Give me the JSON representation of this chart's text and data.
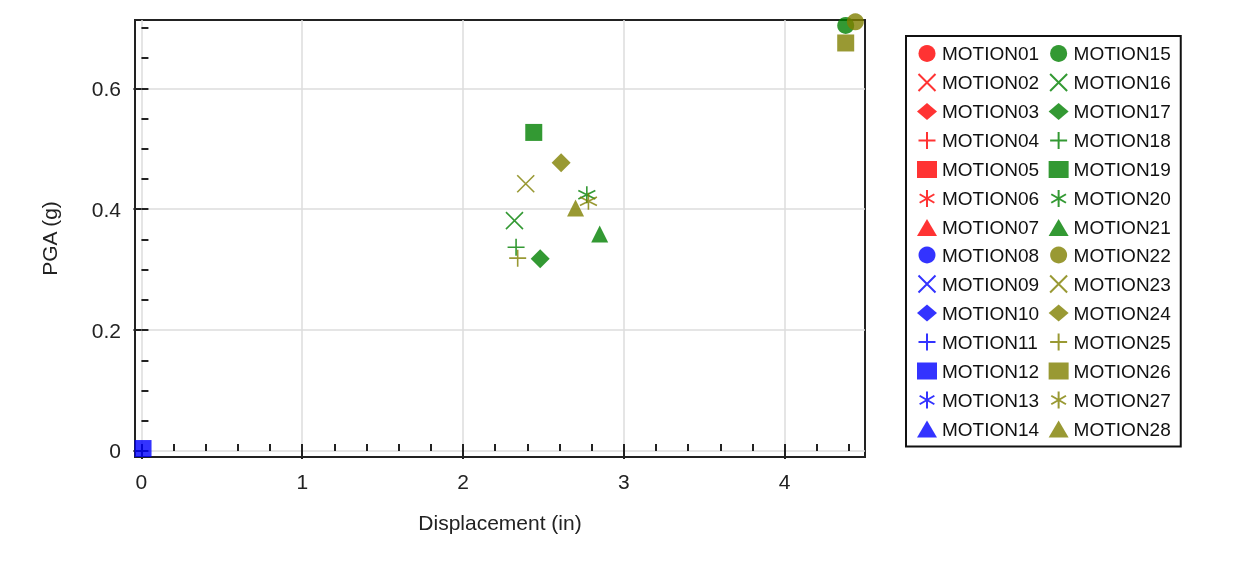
{
  "chart_data": {
    "type": "scatter",
    "xlabel": "Displacement (in)",
    "ylabel": "PGA (g)",
    "xlim": [
      -0.04,
      4.5
    ],
    "ylim": [
      -0.01,
      0.713
    ],
    "xticks": [
      0,
      {
        "value": 0.2,
        "label": null
      },
      {
        "value": 0.4,
        "label": null
      },
      {
        "value": 0.6,
        "label": null
      },
      {
        "value": 0.8,
        "label": null
      },
      1,
      {
        "value": 1.2,
        "label": null
      },
      {
        "value": 1.4,
        "label": null
      },
      {
        "value": 1.6,
        "label": null
      },
      {
        "value": 1.8,
        "label": null
      },
      2,
      {
        "value": 2.2,
        "label": null
      },
      {
        "value": 2.4,
        "label": null
      },
      {
        "value": 2.6,
        "label": null
      },
      {
        "value": 2.8,
        "label": null
      },
      3,
      {
        "value": 3.2,
        "label": null
      },
      {
        "value": 3.4,
        "label": null
      },
      {
        "value": 3.6,
        "label": null
      },
      {
        "value": 3.8,
        "label": null
      },
      4,
      {
        "value": 4.2,
        "label": null
      },
      {
        "value": 4.4,
        "label": null
      }
    ],
    "yticks": [
      0,
      {
        "value": 0.05,
        "label": null
      },
      {
        "value": 0.1,
        "label": null
      },
      {
        "value": 0.15,
        "label": null
      },
      0.2,
      {
        "value": 0.25,
        "label": null
      },
      {
        "value": 0.3,
        "label": null
      },
      {
        "value": 0.35,
        "label": null
      },
      0.4,
      {
        "value": 0.45,
        "label": null
      },
      {
        "value": 0.5,
        "label": null
      },
      {
        "value": 0.55,
        "label": null
      },
      0.6,
      {
        "value": 0.65,
        "label": null
      },
      {
        "value": 0.7,
        "label": null
      }
    ],
    "grid": true,
    "legend": "right",
    "series": [
      {
        "name": "MOTION01",
        "color": "#ff0000",
        "marker": "circle",
        "x": [
          null
        ],
        "values": [
          null
        ]
      },
      {
        "name": "MOTION02",
        "color": "#ff0000",
        "marker": "x",
        "x": [
          null
        ],
        "values": [
          null
        ]
      },
      {
        "name": "MOTION03",
        "color": "#ff0000",
        "marker": "diamond",
        "x": [
          null
        ],
        "values": [
          null
        ]
      },
      {
        "name": "MOTION04",
        "color": "#ff0000",
        "marker": "plus",
        "x": [
          null
        ],
        "values": [
          null
        ]
      },
      {
        "name": "MOTION05",
        "color": "#ff0000",
        "marker": "square",
        "x": [
          null
        ],
        "values": [
          null
        ]
      },
      {
        "name": "MOTION06",
        "color": "#ff0000",
        "marker": "cross",
        "x": [
          null
        ],
        "values": [
          null
        ]
      },
      {
        "name": "MOTION07",
        "color": "#ff0000",
        "marker": "triangle",
        "x": [
          null
        ],
        "values": [
          null
        ]
      },
      {
        "name": "MOTION08",
        "color": "#0000ff",
        "marker": "circle",
        "x": [
          null
        ],
        "values": [
          null
        ]
      },
      {
        "name": "MOTION09",
        "color": "#0000ff",
        "marker": "x",
        "x": [
          null
        ],
        "values": [
          null
        ]
      },
      {
        "name": "MOTION10",
        "color": "#0000ff",
        "marker": "diamond",
        "x": [
          null
        ],
        "values": [
          null
        ]
      },
      {
        "name": "MOTION11",
        "color": "#0000ff",
        "marker": "plus",
        "x": [
          null
        ],
        "values": [
          null
        ]
      },
      {
        "name": "MOTION12",
        "color": "#0000ff",
        "marker": "square",
        "x": [
          0.01
        ],
        "values": [
          0.004
        ]
      },
      {
        "name": "MOTION13",
        "color": "#0000ff",
        "marker": "cross",
        "x": [
          null
        ],
        "values": [
          null
        ]
      },
      {
        "name": "MOTION14",
        "color": "#0000ff",
        "marker": "triangle",
        "x": [
          null
        ],
        "values": [
          null
        ]
      },
      {
        "name": "MOTION15",
        "color": "#008000",
        "marker": "circle",
        "x": [
          4.38
        ],
        "values": [
          0.704
        ]
      },
      {
        "name": "MOTION16",
        "color": "#008000",
        "marker": "x",
        "x": [
          2.32
        ],
        "values": [
          0.381
        ]
      },
      {
        "name": "MOTION17",
        "color": "#008000",
        "marker": "diamond",
        "x": [
          2.48
        ],
        "values": [
          0.318
        ]
      },
      {
        "name": "MOTION18",
        "color": "#008000",
        "marker": "plus",
        "x": [
          2.33
        ],
        "values": [
          0.337
        ]
      },
      {
        "name": "MOTION19",
        "color": "#008000",
        "marker": "square",
        "x": [
          2.44
        ],
        "values": [
          0.527
        ]
      },
      {
        "name": "MOTION20",
        "color": "#008000",
        "marker": "cross",
        "x": [
          2.77
        ],
        "values": [
          0.424
        ]
      },
      {
        "name": "MOTION21",
        "color": "#008000",
        "marker": "triangle",
        "x": [
          2.85
        ],
        "values": [
          0.359
        ]
      },
      {
        "name": "MOTION22",
        "color": "#808000",
        "marker": "circle",
        "x": [
          4.44
        ],
        "values": [
          0.71
        ]
      },
      {
        "name": "MOTION23",
        "color": "#808000",
        "marker": "x",
        "x": [
          2.39
        ],
        "values": [
          0.442
        ]
      },
      {
        "name": "MOTION24",
        "color": "#808000",
        "marker": "diamond",
        "x": [
          2.61
        ],
        "values": [
          0.477
        ]
      },
      {
        "name": "MOTION25",
        "color": "#808000",
        "marker": "plus",
        "x": [
          2.34
        ],
        "values": [
          0.319
        ]
      },
      {
        "name": "MOTION26",
        "color": "#808000",
        "marker": "square",
        "x": [
          4.38
        ],
        "values": [
          0.675
        ]
      },
      {
        "name": "MOTION27",
        "color": "#808000",
        "marker": "cross",
        "x": [
          2.78
        ],
        "values": [
          0.413
        ]
      },
      {
        "name": "MOTION28",
        "color": "#808000",
        "marker": "triangle",
        "x": [
          2.7
        ],
        "values": [
          0.402
        ]
      }
    ]
  }
}
